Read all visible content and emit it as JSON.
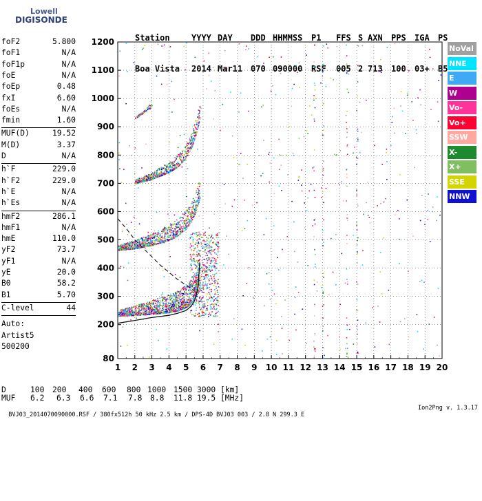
{
  "logo": {
    "line1": "Lowell",
    "line2": "DIGISONDE"
  },
  "header": {
    "labels": [
      "Station",
      "YYYY",
      "DAY",
      "DDD",
      "HHMMSS",
      "P1",
      "FFS",
      "S",
      "AXN",
      "PPS",
      "IGA",
      "PS"
    ],
    "values": [
      "Boa Vista",
      "2014",
      "Mar11",
      "070",
      "090000",
      "RSF",
      "005",
      "2",
      "713",
      "100",
      "03+",
      "B5"
    ]
  },
  "params": {
    "group1": [
      {
        "name": "foF2",
        "value": "5.800"
      },
      {
        "name": "foF1",
        "value": "N/A"
      },
      {
        "name": "foF1p",
        "value": "N/A"
      },
      {
        "name": "foE",
        "value": "N/A"
      },
      {
        "name": "foEp",
        "value": "0.48"
      },
      {
        "name": "fxI",
        "value": "6.60"
      },
      {
        "name": "foEs",
        "value": "N/A"
      },
      {
        "name": "fmin",
        "value": "1.60"
      }
    ],
    "group2": [
      {
        "name": "MUF(D)",
        "value": "19.52"
      },
      {
        "name": "M(D)",
        "value": "3.37"
      },
      {
        "name": "D",
        "value": "N/A"
      }
    ],
    "group3": [
      {
        "name": "h`F",
        "value": "229.0"
      },
      {
        "name": "h`F2",
        "value": "229.0"
      },
      {
        "name": "h`E",
        "value": "N/A"
      },
      {
        "name": "h`Es",
        "value": "N/A"
      }
    ],
    "group4": [
      {
        "name": "hmF2",
        "value": "286.1"
      },
      {
        "name": "hmF1",
        "value": "N/A"
      },
      {
        "name": "hmE",
        "value": "110.0"
      },
      {
        "name": "yF2",
        "value": "73.7"
      },
      {
        "name": "yF1",
        "value": "N/A"
      },
      {
        "name": "yE",
        "value": "20.0"
      },
      {
        "name": "B0",
        "value": "58.2"
      },
      {
        "name": "B1",
        "value": "5.70"
      }
    ],
    "clevel": {
      "name": "C-level",
      "value": "44"
    },
    "auto": [
      "Auto:",
      "Artist5",
      "500200"
    ]
  },
  "legend": [
    {
      "label": "NoVal",
      "color": "#a0a0a0"
    },
    {
      "label": "NNE",
      "color": "#00e5ff"
    },
    {
      "label": "E",
      "color": "#3fa9f5"
    },
    {
      "label": "W",
      "color": "#b0008f"
    },
    {
      "label": "Vo-",
      "color": "#ff3399"
    },
    {
      "label": "Vo+",
      "color": "#ff0033"
    },
    {
      "label": "SSW",
      "color": "#ffa8a0"
    },
    {
      "label": "X-",
      "color": "#1e8a2e"
    },
    {
      "label": "X+",
      "color": "#7fbf5f"
    },
    {
      "label": "SSE",
      "color": "#d4d400"
    },
    {
      "label": "NNW",
      "color": "#1010d0"
    }
  ],
  "table": {
    "row1_label": "D",
    "row1": [
      "100",
      "200",
      "400",
      "600",
      "800",
      "1000",
      "1500",
      "3000",
      "[km]"
    ],
    "row2_label": "MUF",
    "row2": [
      "6.2",
      "6.3",
      "6.6",
      "7.1",
      "7.8",
      "8.8",
      "11.8",
      "19.5",
      "[MHz]"
    ]
  },
  "footer": {
    "left": "BVJ03_2014070090000.RSF / 380fx512h 50 kHz 2.5 km / DPS-4D BVJ03 003 / 2.8 N 299.3 E",
    "right": "Ion2Png v. 1.3.17"
  },
  "chart_data": {
    "type": "scatter",
    "x_ticks": [
      "1",
      "2",
      "3",
      "4",
      "5",
      "6",
      "7",
      "8",
      "9",
      "10",
      "11",
      "12",
      "13",
      "14",
      "15",
      "16",
      "17",
      "18",
      "19",
      "20"
    ],
    "y_ticks": [
      "80",
      "200",
      "300",
      "400",
      "500",
      "600",
      "700",
      "800",
      "900",
      "1000",
      "1100",
      "1200"
    ],
    "xlim": [
      1,
      20
    ],
    "ylim": [
      80,
      1200
    ],
    "traces": [
      {
        "series": "o-trace-1st",
        "x": [
          1.0,
          2.0,
          3.0,
          4.0,
          4.5,
          5.0,
          5.3,
          5.6,
          5.8
        ],
        "y": [
          232,
          234,
          238,
          244,
          250,
          262,
          278,
          305,
          330
        ]
      },
      {
        "series": "o-trace-2nd",
        "x": [
          1.0,
          2.0,
          3.0,
          4.0,
          4.5,
          5.0,
          5.3,
          5.6,
          5.8
        ],
        "y": [
          464,
          470,
          482,
          500,
          515,
          540,
          568,
          605,
          650
        ]
      },
      {
        "series": "o-trace-3rd",
        "x": [
          2.0,
          3.0,
          4.0,
          4.5,
          5.0,
          5.3,
          5.6,
          5.8
        ],
        "y": [
          700,
          715,
          740,
          760,
          790,
          825,
          880,
          930
        ]
      },
      {
        "series": "o-trace-4th",
        "x": [
          2.0,
          2.5,
          3.0
        ],
        "y": [
          930,
          950,
          975
        ]
      }
    ],
    "profile_line": {
      "x": [
        1.0,
        2.0,
        3.0,
        4.0,
        4.5,
        5.0,
        5.3,
        5.5,
        5.7,
        5.8
      ],
      "y": [
        205,
        215,
        225,
        233,
        240,
        250,
        265,
        285,
        330,
        420
      ]
    },
    "dashed_line": {
      "x": [
        1.0,
        1.5,
        2.0,
        2.5,
        3.0,
        3.5,
        4.0,
        4.5,
        5.0,
        5.5
      ],
      "y": [
        575,
        540,
        500,
        470,
        440,
        410,
        385,
        360,
        340,
        320
      ]
    }
  }
}
